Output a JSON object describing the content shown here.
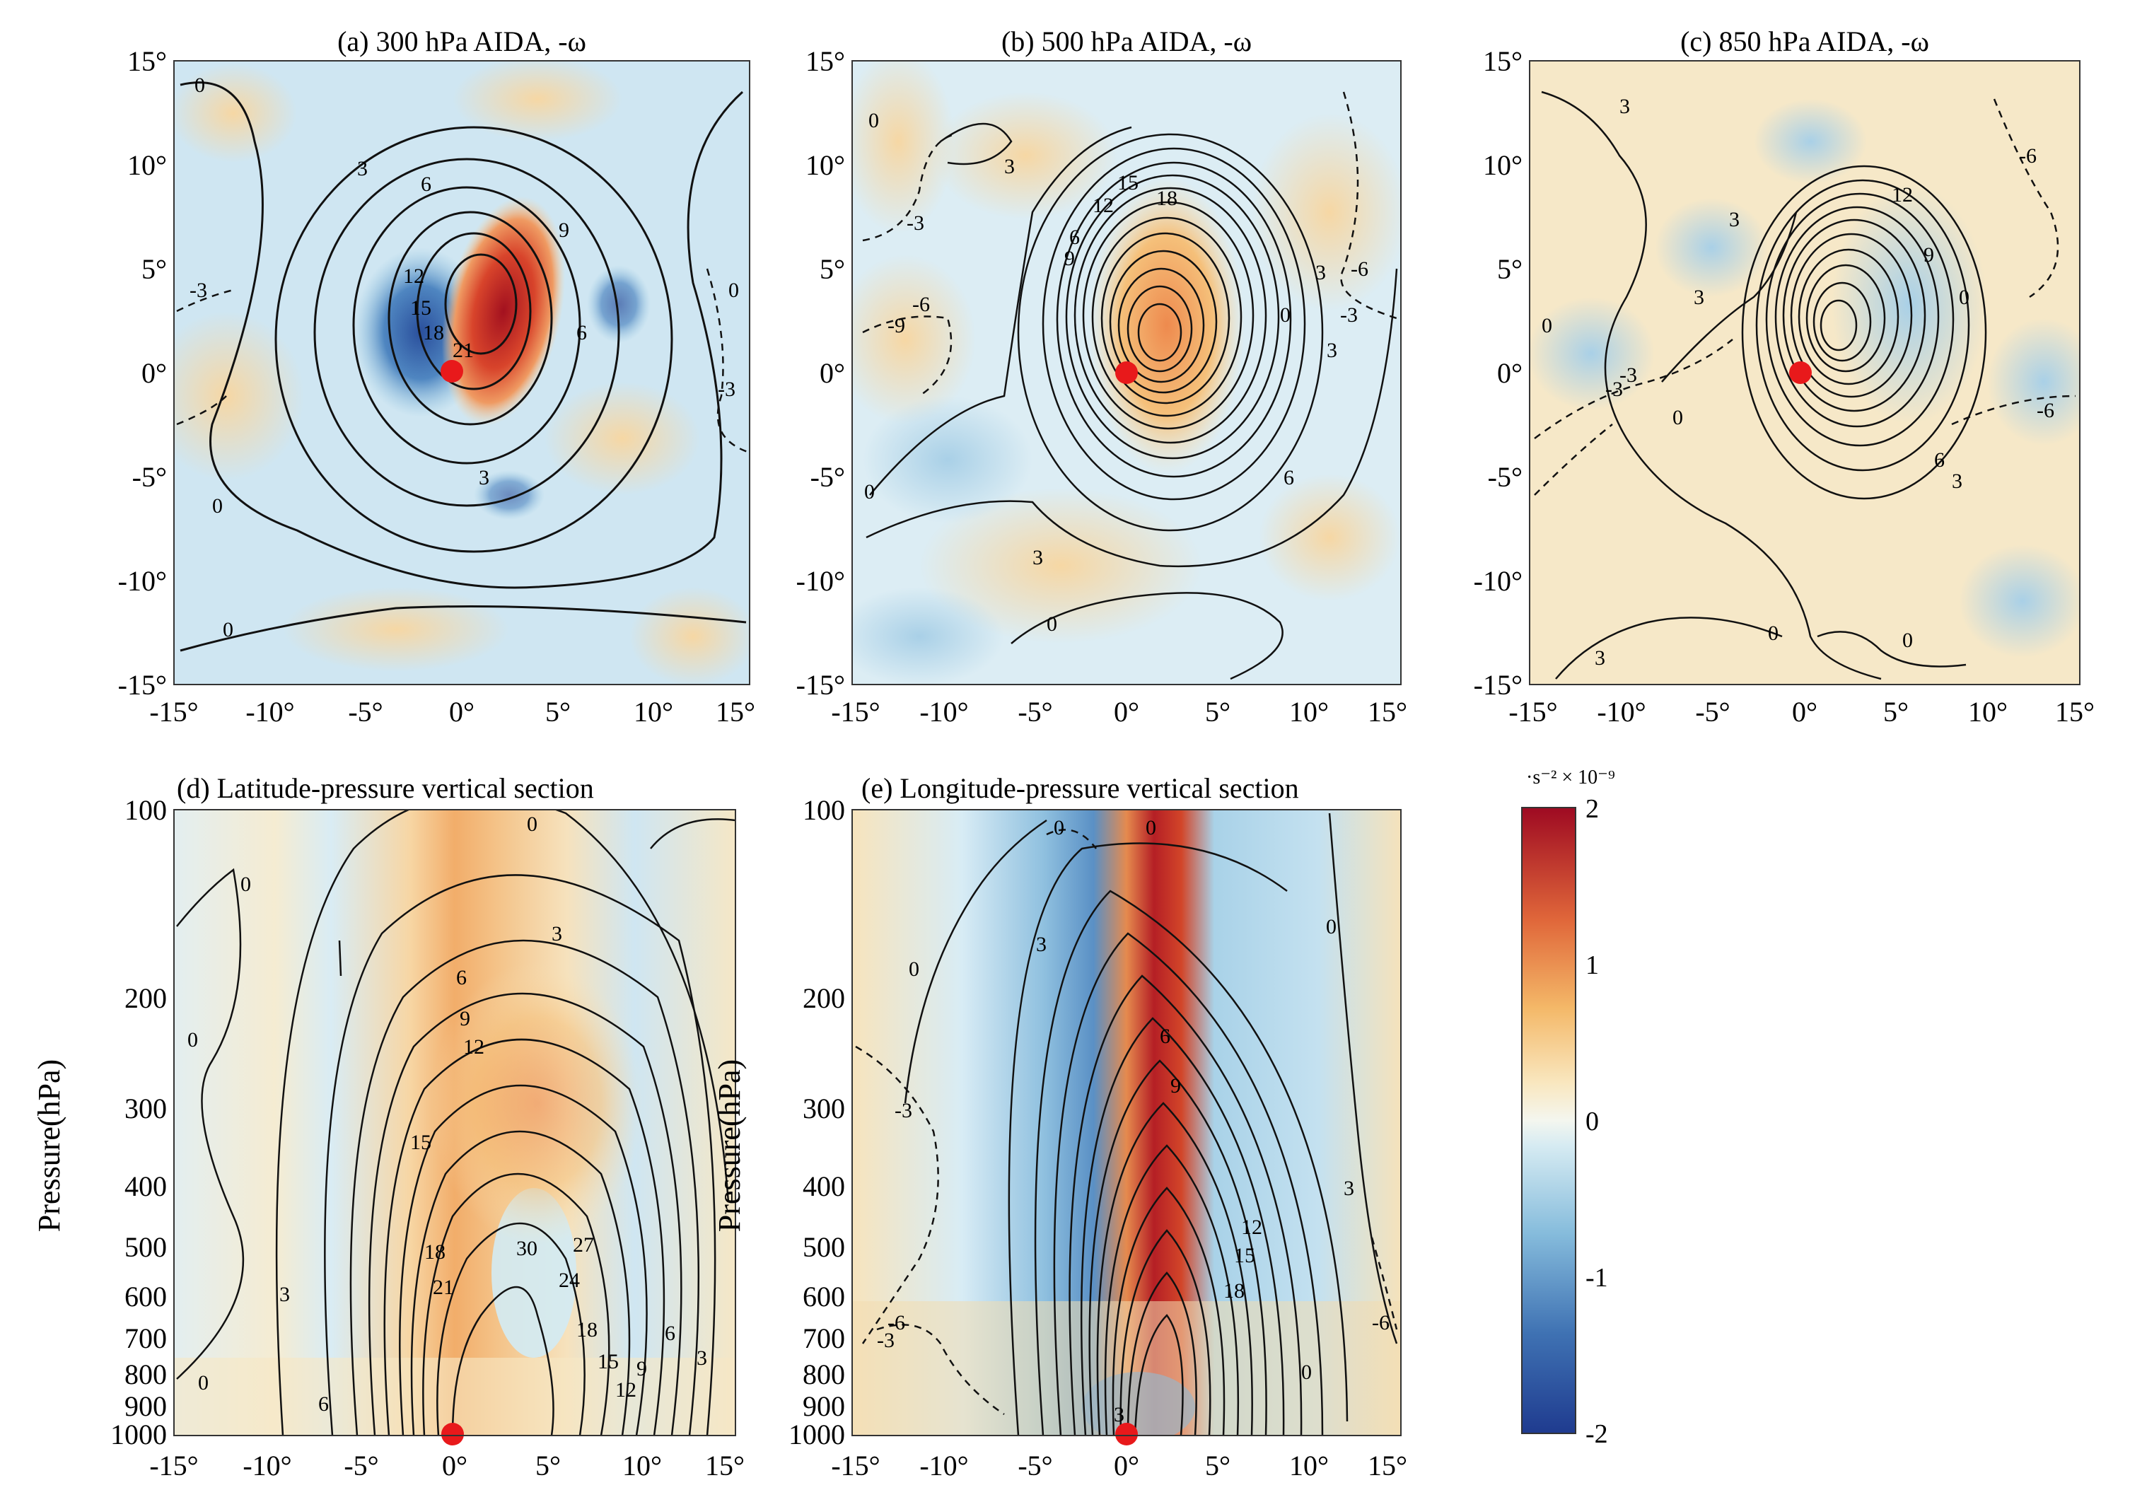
{
  "chart_data": {
    "type": "contour",
    "panels": [
      {
        "id": "a",
        "title": "(a) 300 hPa AIDA, -ω",
        "x_ticks": [
          "-15°",
          "-10°",
          "-5°",
          "0°",
          "5°",
          "10°",
          "15°"
        ],
        "y_ticks": [
          "15°",
          "10°",
          "5°",
          "0°",
          "-5°",
          "-10°",
          "-15°"
        ],
        "xlim": [
          -15,
          15
        ],
        "ylim": [
          -15,
          15
        ],
        "contour_labels": [
          "0",
          "0",
          "0",
          "0",
          "3",
          "3",
          "6",
          "6",
          "9",
          "12",
          "15",
          "18",
          "21",
          "-3",
          "-3"
        ],
        "marker": {
          "x": 0,
          "y": 0,
          "color": "#e8191b"
        }
      },
      {
        "id": "b",
        "title": "(b) 500 hPa AIDA, -ω",
        "x_ticks": [
          "-15°",
          "-10°",
          "-5°",
          "0°",
          "5°",
          "10°",
          "15°"
        ],
        "y_ticks": [
          "15°",
          "10°",
          "5°",
          "0°",
          "-5°",
          "-10°",
          "-15°"
        ],
        "xlim": [
          -15,
          15
        ],
        "ylim": [
          -15,
          15
        ],
        "contour_labels": [
          "0",
          "0",
          "0",
          "0",
          "3",
          "3",
          "3",
          "3",
          "6",
          "6",
          "9",
          "12",
          "15",
          "18",
          "-3",
          "-3",
          "-6",
          "-6",
          "-9"
        ],
        "marker": {
          "x": 0,
          "y": 0,
          "color": "#e8191b"
        }
      },
      {
        "id": "c",
        "title": "(c) 850 hPa AIDA, -ω",
        "x_ticks": [
          "-15°",
          "-10°",
          "-5°",
          "0°",
          "5°",
          "10°",
          "15°"
        ],
        "y_ticks": [
          "15°",
          "10°",
          "5°",
          "0°",
          "-5°",
          "-10°",
          "-15°"
        ],
        "xlim": [
          -15,
          15
        ],
        "ylim": [
          -15,
          15
        ],
        "contour_labels": [
          "0",
          "0",
          "0",
          "0",
          "0",
          "3",
          "3",
          "3",
          "3",
          "3",
          "6",
          "9",
          "12",
          "-3",
          "-3",
          "-6",
          "-6"
        ],
        "marker": {
          "x": 0,
          "y": 0,
          "color": "#e8191b"
        }
      },
      {
        "id": "d",
        "title": "(d) Latitude-pressure vertical section",
        "x_ticks": [
          "-15°",
          "-10°",
          "-5°",
          "0°",
          "5°",
          "10°",
          "15°"
        ],
        "y_ticks": [
          "100",
          "200",
          "300",
          "400",
          "500",
          "600",
          "700",
          "800",
          "900",
          "1000"
        ],
        "y_label": "Pressure(hPa)",
        "xlim": [
          -15,
          15
        ],
        "ylim": [
          1000,
          100
        ],
        "y_scale": "log",
        "contour_labels": [
          "0",
          "0",
          "0",
          "0",
          "3",
          "3",
          "6",
          "6",
          "9",
          "12",
          "15",
          "18",
          "21",
          "24",
          "27",
          "30",
          "18",
          "15",
          "12",
          "9",
          "6",
          "3"
        ],
        "marker": {
          "x": 0,
          "y": 1000,
          "color": "#e8191b"
        }
      },
      {
        "id": "e",
        "title": "(e) Longitude-pressure vertical section",
        "x_ticks": [
          "-15°",
          "-10°",
          "-5°",
          "0°",
          "5°",
          "10°",
          "15°"
        ],
        "y_ticks": [
          "100",
          "200",
          "300",
          "400",
          "500",
          "600",
          "700",
          "800",
          "900",
          "1000"
        ],
        "y_label": "Pressure(hPa)",
        "xlim": [
          -15,
          15
        ],
        "ylim": [
          1000,
          100
        ],
        "y_scale": "log",
        "contour_labels": [
          "0",
          "0",
          "0",
          "0",
          "0",
          "3",
          "3",
          "3",
          "6",
          "9",
          "12",
          "15",
          "18",
          "-3",
          "-3",
          "-6",
          "-6"
        ],
        "marker": {
          "x": 0,
          "y": 1000,
          "color": "#e8191b"
        }
      }
    ],
    "colorbar": {
      "unit": "·s⁻² × 10⁻⁹",
      "ticks": [
        "2",
        "1",
        "0",
        "-1",
        "-2"
      ],
      "range": [
        -2,
        2
      ],
      "colors": [
        "#1f3b8f",
        "#4f86c1",
        "#a9cfe6",
        "#f4f6ef",
        "#f7dca5",
        "#f0a05a",
        "#d44b2e",
        "#9e0a22"
      ]
    }
  }
}
